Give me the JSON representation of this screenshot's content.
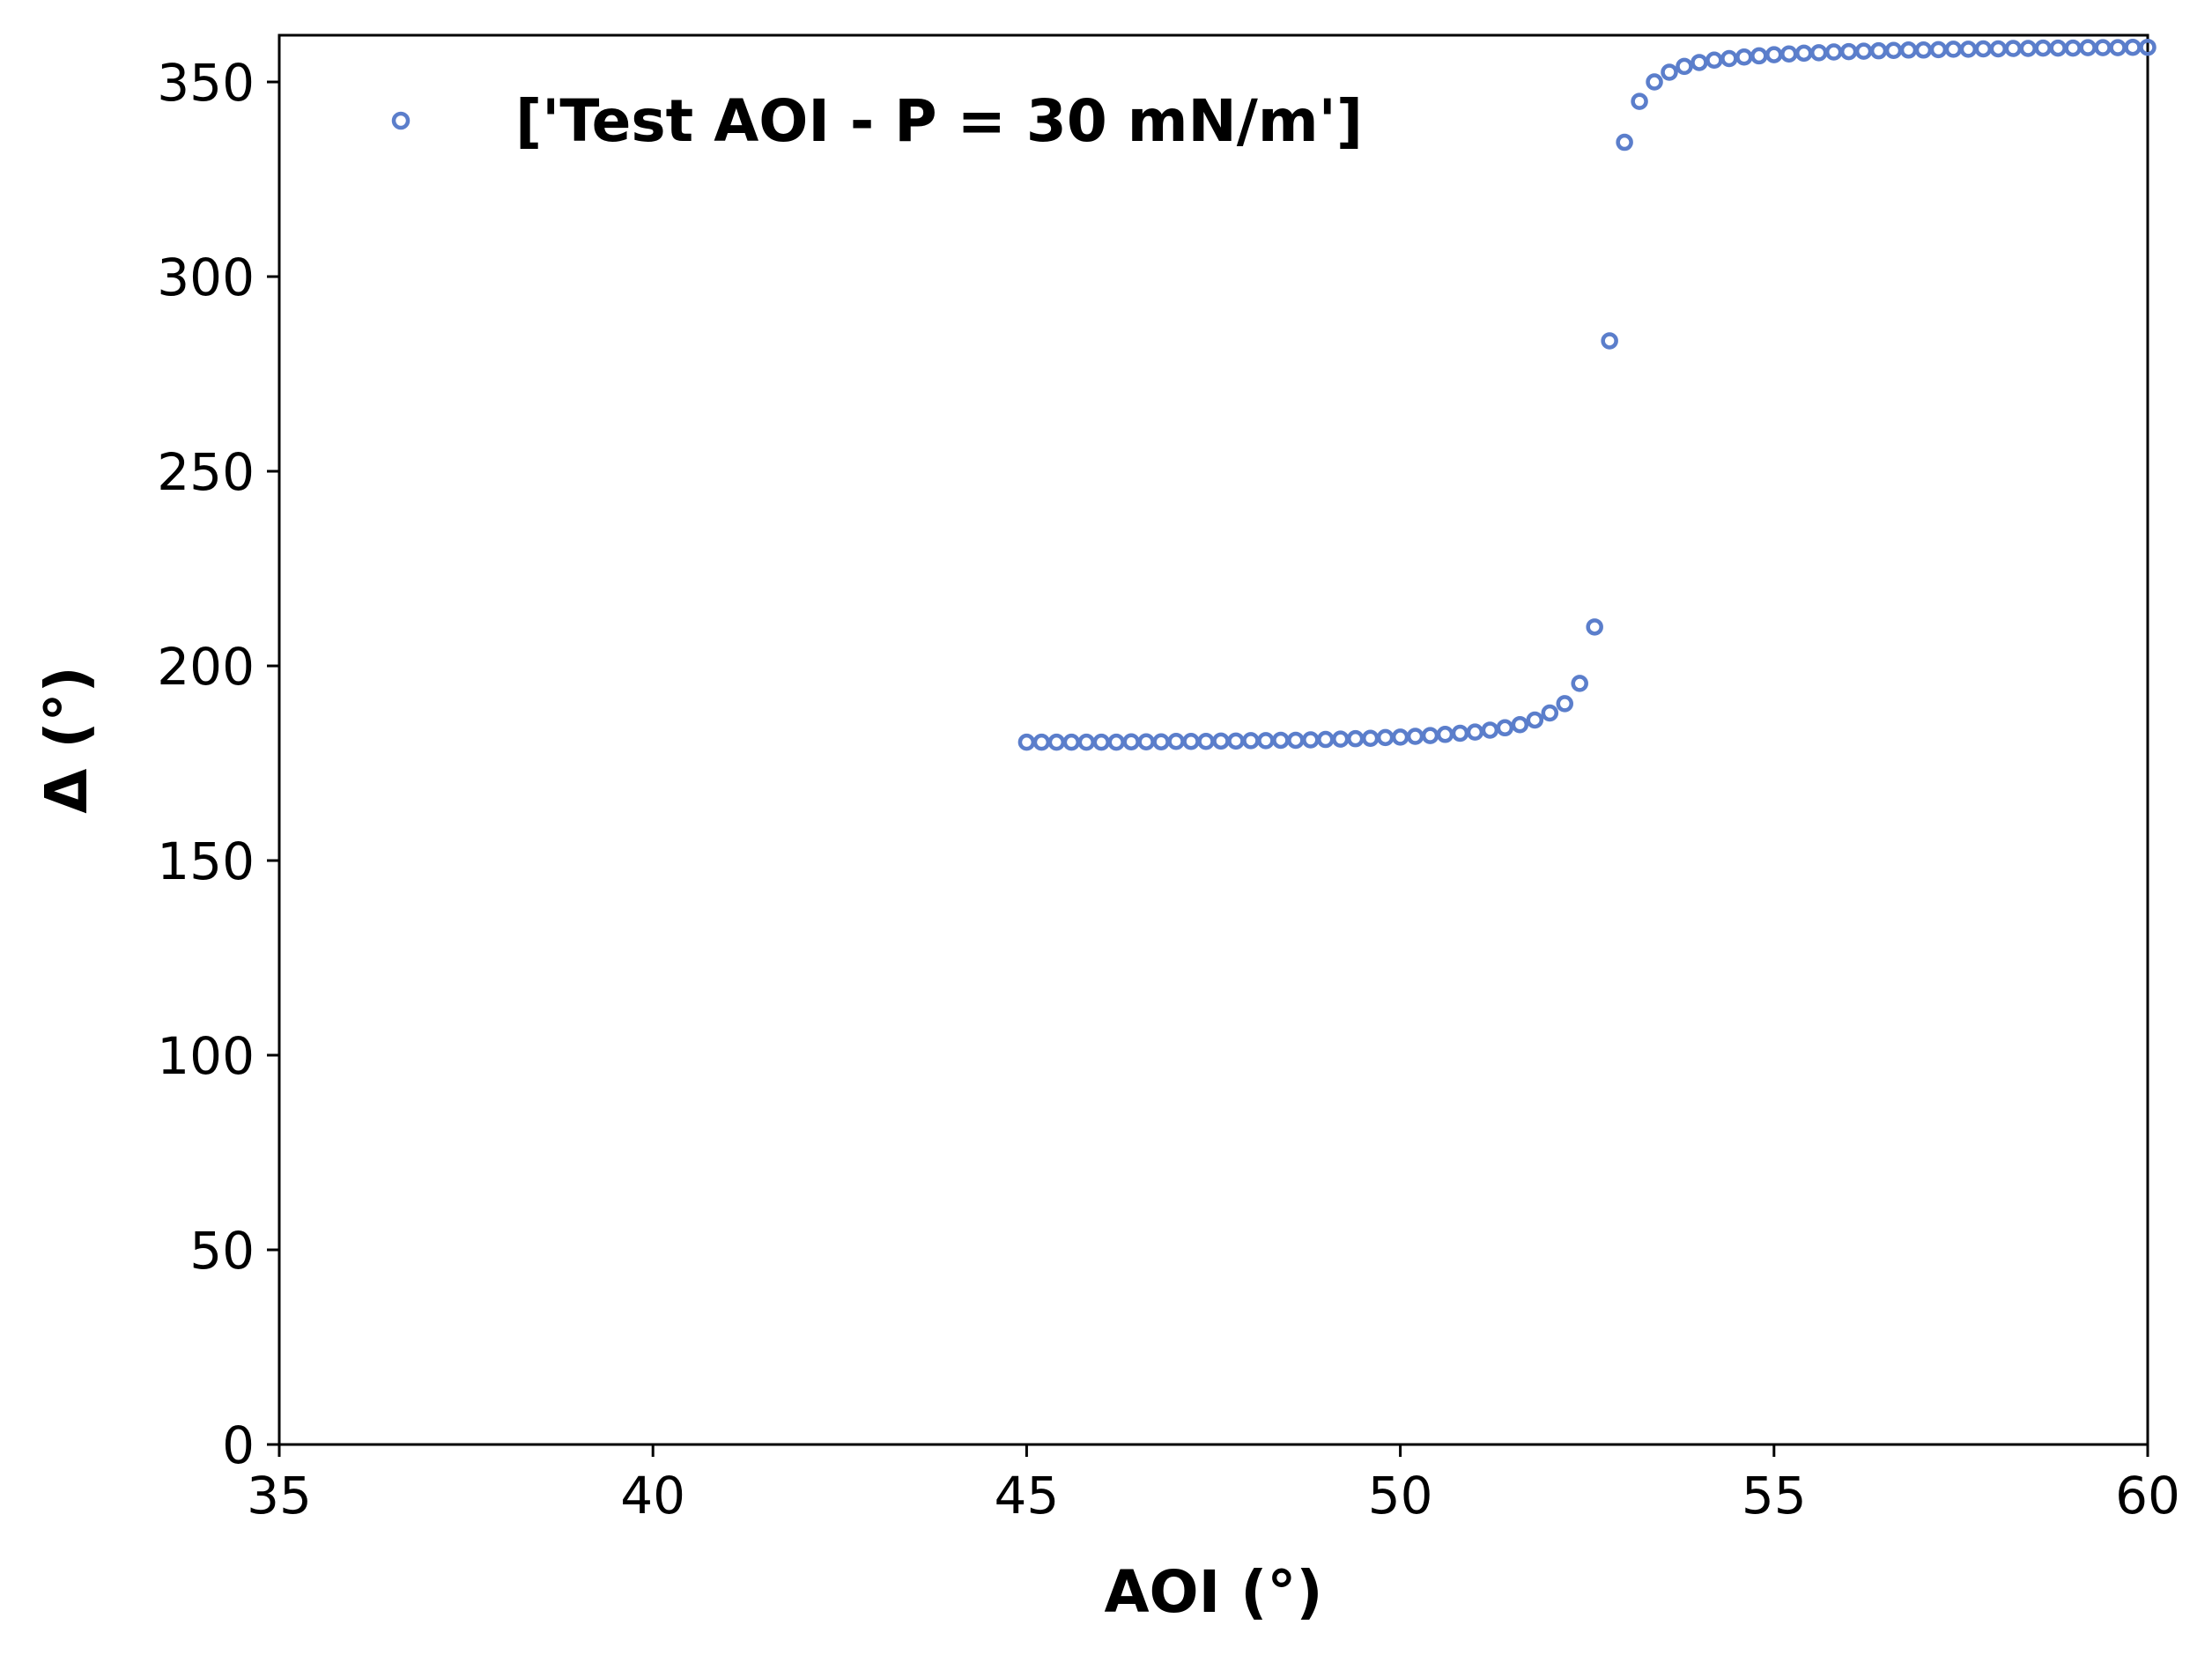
{
  "chart_data": {
    "type": "scatter",
    "title": "",
    "xlabel": "AOI (°)",
    "ylabel": "Δ (°)",
    "xlim": [
      35,
      60
    ],
    "ylim": [
      0,
      362
    ],
    "x_ticks": [
      35,
      40,
      45,
      50,
      55,
      60
    ],
    "y_ticks": [
      0,
      50,
      100,
      150,
      200,
      250,
      300,
      350
    ],
    "x_tick_labels": [
      "35",
      "40",
      "45",
      "50",
      "55",
      "60"
    ],
    "y_tick_labels": [
      "0",
      "50",
      "100",
      "150",
      "200",
      "250",
      "300",
      "350"
    ],
    "grid": false,
    "legend": {
      "position": "upper-left"
    },
    "marker": "hollow-circle",
    "series": [
      {
        "name": "['Test AOI - P = 30 mN/m']",
        "color": "#5b7ecb",
        "x": [
          45.0,
          45.2,
          45.4,
          45.6,
          45.8,
          46.0,
          46.2,
          46.4,
          46.6,
          46.8,
          47.0,
          47.2,
          47.4,
          47.6,
          47.8,
          48.0,
          48.2,
          48.4,
          48.6,
          48.8,
          49.0,
          49.2,
          49.4,
          49.6,
          49.8,
          50.0,
          50.2,
          50.4,
          50.6,
          50.8,
          51.0,
          51.2,
          51.4,
          51.6,
          51.8,
          52.0,
          52.2,
          52.4,
          52.6,
          52.8,
          53.0,
          53.2,
          53.4,
          53.6,
          53.8,
          54.0,
          54.2,
          54.4,
          54.6,
          54.8,
          55.0,
          55.2,
          55.4,
          55.6,
          55.8,
          56.0,
          56.2,
          56.4,
          56.6,
          56.8,
          57.0,
          57.2,
          57.4,
          57.6,
          57.8,
          58.0,
          58.2,
          58.4,
          58.6,
          58.8,
          59.0,
          59.2,
          59.4,
          59.6,
          59.8,
          60.0
        ],
        "y": [
          180.4,
          180.4,
          180.4,
          180.4,
          180.4,
          180.4,
          180.4,
          180.5,
          180.5,
          180.5,
          180.6,
          180.6,
          180.6,
          180.7,
          180.7,
          180.8,
          180.8,
          180.9,
          180.9,
          181.0,
          181.1,
          181.2,
          181.3,
          181.4,
          181.6,
          181.7,
          181.9,
          182.1,
          182.4,
          182.7,
          183.0,
          183.5,
          184.1,
          184.9,
          186.1,
          187.9,
          190.3,
          195.5,
          210.0,
          283.5,
          334.5,
          345.0,
          350.0,
          352.5,
          354.0,
          355.0,
          355.6,
          356.0,
          356.4,
          356.7,
          357.0,
          357.2,
          357.4,
          357.5,
          357.7,
          357.8,
          357.9,
          358.0,
          358.1,
          358.2,
          358.2,
          358.3,
          358.4,
          358.4,
          358.5,
          358.5,
          358.6,
          358.6,
          358.7,
          358.7,
          358.7,
          358.8,
          358.8,
          358.8,
          358.9,
          358.9
        ]
      }
    ]
  }
}
